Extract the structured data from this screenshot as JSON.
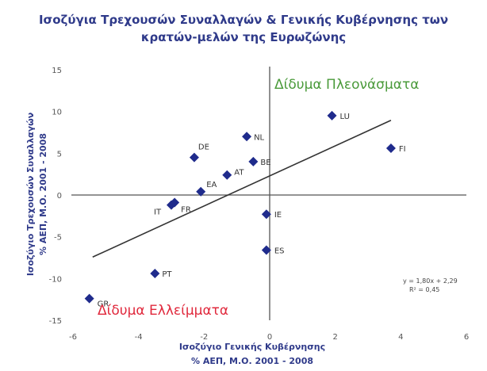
{
  "chart_data": {
    "type": "scatter",
    "title_line1": "Ισοζύγια Τρεχουσών Συναλλαγών & Γενικής Κυβέρνησης των",
    "title_line2": "κρατών-μελών της Ευρωζώνης",
    "xlabel_line1": "Ισοζύγιο Γενικής Κυβέρνησης",
    "xlabel_line2": "% ΑΕΠ, Μ.Ο. 2001 - 2008",
    "ylabel_line1": "Ισοζύγιο Τρεχουσών Συναλλαγών",
    "ylabel_line2": "% ΑΕΠ, Μ.Ο. 2001 - 2008",
    "xlim": [
      -6,
      6
    ],
    "ylim": [
      -15,
      15
    ],
    "x_ticks": [
      -6,
      -4,
      -2,
      0,
      2,
      4,
      6
    ],
    "x_tick_labels": [
      "-6",
      "-4",
      "-2",
      "0",
      "2",
      "4",
      "6"
    ],
    "y_ticks": [
      -15,
      -10,
      -5,
      0,
      5,
      10,
      15
    ],
    "y_tick_labels": [
      "-15",
      "-10",
      "-5",
      "0",
      "5",
      "10",
      "15"
    ],
    "points": [
      {
        "label": "LU",
        "x": 1.9,
        "y": 9.5
      },
      {
        "label": "FI",
        "x": 3.7,
        "y": 5.6
      },
      {
        "label": "NL",
        "x": -0.7,
        "y": 7.0
      },
      {
        "label": "DE",
        "x": -2.3,
        "y": 4.5
      },
      {
        "label": "BE",
        "x": -0.5,
        "y": 4.0
      },
      {
        "label": "AT",
        "x": -1.3,
        "y": 2.4
      },
      {
        "label": "EA",
        "x": -2.1,
        "y": 0.4
      },
      {
        "label": "IT",
        "x": -3.0,
        "y": -1.2
      },
      {
        "label": "FR",
        "x": -2.9,
        "y": -0.9
      },
      {
        "label": "IE",
        "x": -0.1,
        "y": -2.3
      },
      {
        "label": "ES",
        "x": -0.1,
        "y": -6.6
      },
      {
        "label": "PT",
        "x": -3.5,
        "y": -9.4
      },
      {
        "label": "GR",
        "x": -5.5,
        "y": -12.4
      }
    ],
    "trendline": {
      "slope": 1.8,
      "intercept": 2.29,
      "x_range": [
        -5.4,
        3.7
      ]
    },
    "equation_line1": "y = 1,80x + 2,29",
    "equation_line2": "R² = 0,45",
    "annotation_surplus": "Δίδυμα Πλεονάσματα",
    "annotation_deficit": "Δίδυμα Ελλείμματα",
    "colors": {
      "title": "#2f3a8a",
      "marker": "#1f2b8c",
      "surplus": "#4a9a3a",
      "deficit": "#e0283c",
      "axis": "#555555",
      "trendline": "#333333"
    }
  }
}
